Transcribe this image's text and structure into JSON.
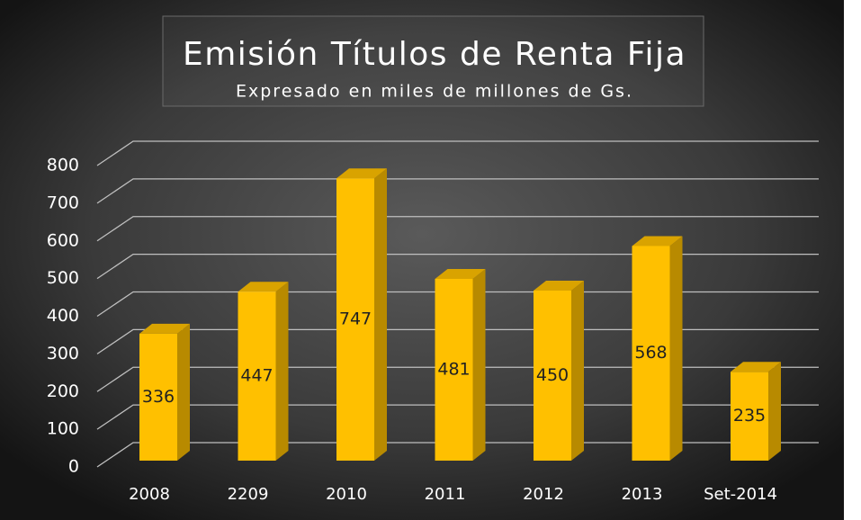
{
  "chart_data": {
    "type": "bar3d",
    "title": "Emisión Títulos de Renta Fija",
    "subtitle": "Expresado en miles de millones de Gs.",
    "categories": [
      "2008",
      "2209",
      "2010",
      "2011",
      "2012",
      "2013",
      "Set-2014"
    ],
    "values": [
      336,
      447,
      747,
      481,
      450,
      568,
      235
    ],
    "color": "#ffc000",
    "ylim": [
      0,
      800
    ],
    "yticks": [
      0,
      100,
      200,
      300,
      400,
      500,
      600,
      700,
      800
    ],
    "grid": true
  }
}
